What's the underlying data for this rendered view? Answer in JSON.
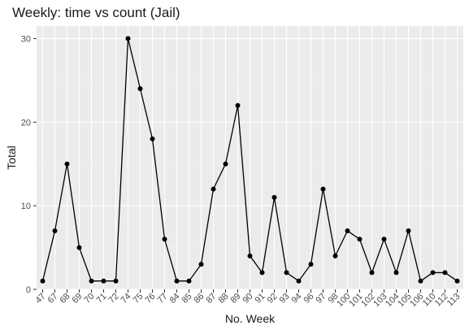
{
  "chart_data": {
    "type": "line",
    "title": "Weekly: time vs count (Jail)",
    "xlabel": "No. Week",
    "ylabel": "Total",
    "categories": [
      "47",
      "67",
      "68",
      "69",
      "70",
      "71",
      "72",
      "74",
      "75",
      "76",
      "77",
      "84",
      "85",
      "86",
      "87",
      "88",
      "89",
      "90",
      "91",
      "92",
      "93",
      "94",
      "96",
      "97",
      "98",
      "100",
      "101",
      "102",
      "103",
      "104",
      "105",
      "106",
      "110",
      "112",
      "113"
    ],
    "values": [
      1,
      7,
      15,
      5,
      1,
      1,
      1,
      30,
      24,
      18,
      6,
      1,
      1,
      3,
      12,
      15,
      22,
      4,
      2,
      11,
      2,
      1,
      3,
      12,
      4,
      7,
      6,
      2,
      6,
      2,
      7,
      1,
      2,
      2,
      1
    ],
    "ylim": [
      0,
      31.5
    ],
    "yticks": [
      0,
      10,
      20,
      30
    ],
    "grid": true,
    "panel_background": "#ebebeb",
    "line_color": "#000000"
  }
}
